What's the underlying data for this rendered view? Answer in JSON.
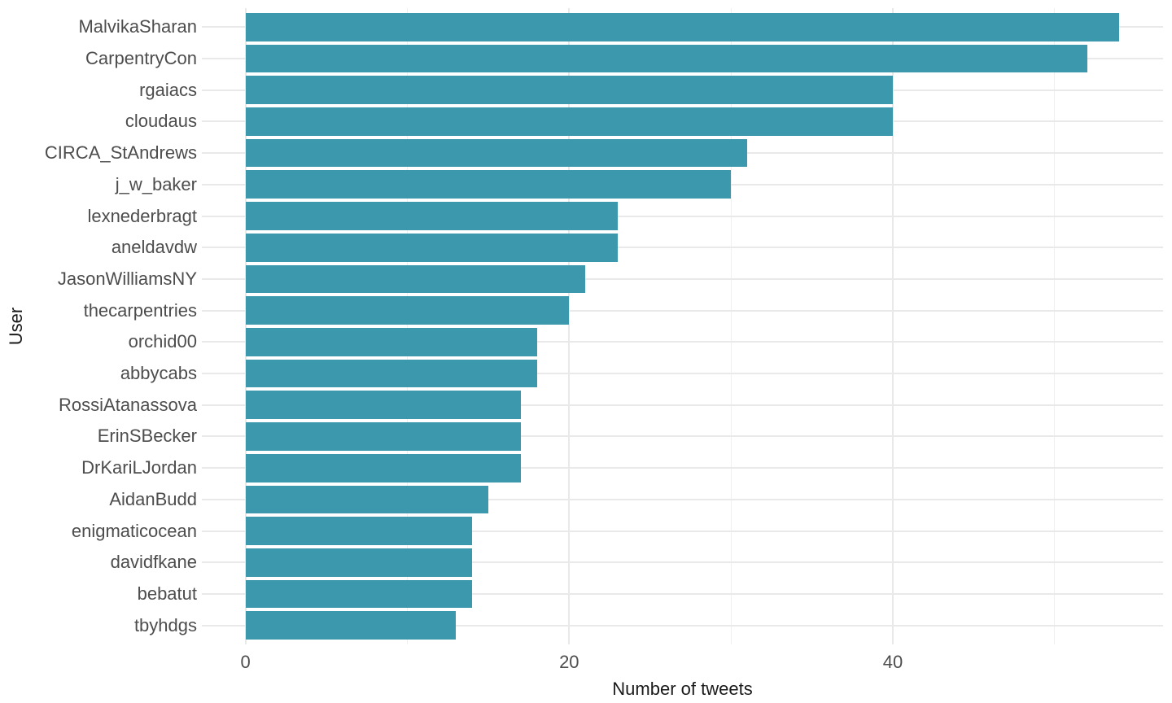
{
  "chart_data": {
    "type": "bar",
    "orientation": "horizontal",
    "title": "",
    "xlabel": "Number of tweets",
    "ylabel": "User",
    "categories": [
      "MalvikaSharan",
      "CarpentryCon",
      "rgaiacs",
      "cloudaus",
      "CIRCA_StAndrews",
      "j_w_baker",
      "lexnederbragt",
      "aneldavdw",
      "JasonWilliamsNY",
      "thecarpentries",
      "orchid00",
      "abbycabs",
      "RossiAtanassova",
      "ErinSBecker",
      "DrKariLJordan",
      "AidanBudd",
      "enigmaticocean",
      "davidfkane",
      "bebatut",
      "tbyhdgs"
    ],
    "values": [
      54,
      52,
      40,
      40,
      31,
      30,
      23,
      23,
      21,
      20,
      18,
      18,
      17,
      17,
      17,
      15,
      14,
      14,
      14,
      13
    ],
    "x_major_ticks": [
      0,
      20,
      40
    ],
    "x_major_tick_labels": [
      "0",
      "20",
      "40"
    ],
    "x_minor_ticks": [
      10,
      30,
      50
    ],
    "xlim": [
      -2.7,
      56.7
    ],
    "grid": "on",
    "legend": "none",
    "bar_sort": "descending"
  },
  "colors": {
    "bar_fill": "#3C99AD",
    "grid_major": "#E9E9E9",
    "grid_minor": "#F0F0F0",
    "axis_text": "#4D4D4D",
    "axis_title": "#1a1a1a",
    "background": "#FFFFFF"
  }
}
